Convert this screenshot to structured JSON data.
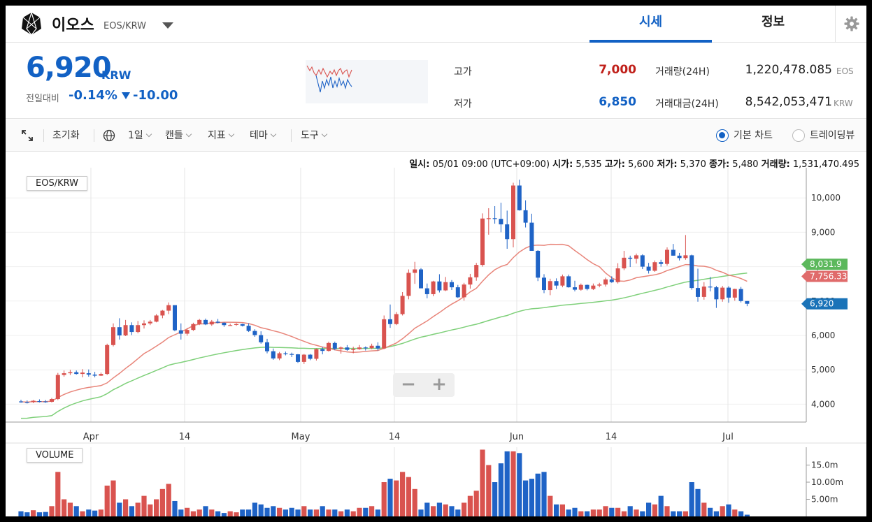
{
  "header": {
    "coin_name": "이오스",
    "coin_pair": "EOS/KRW",
    "tabs": [
      {
        "label": "시세"
      },
      {
        "label": "정보"
      }
    ]
  },
  "ticker": {
    "price": "6,920",
    "unit": "KRW",
    "change_label": "전일대비",
    "change_pct": "-0.14%",
    "change_abs": "-10.00",
    "high_label": "고가",
    "high_value": "7,000",
    "low_label": "저가",
    "low_value": "6,850",
    "volume_label": "거래량(24H)",
    "volume_value": "1,220,478.085",
    "volume_unit": "EOS",
    "amount_label": "거래대금(24H)",
    "amount_value": "8,542,053,471",
    "amount_unit": "KRW"
  },
  "toolbar": {
    "reset": "초기화",
    "interval": "1일",
    "chart_type": "캔들",
    "indicator": "지표",
    "theme": "테마",
    "tools": "도구",
    "basic_chart": "기본 차트",
    "trading_view": "트레이딩뷰"
  },
  "ohlc_readout": {
    "date_label": "일시:",
    "date_value": "05/01 09:00 (UTC+09:00)",
    "open_label": "시가:",
    "open_value": "5,535",
    "high_label": "고가:",
    "high_value": "5,600",
    "low_label": "저가:",
    "low_value": "5,370",
    "close_label": "종가:",
    "close_value": "5,480",
    "volume_label": "거래량:",
    "volume_value": "1,531,470.495"
  },
  "colors": {
    "up": "#d9534f",
    "down": "#1f63c6",
    "ma_short": "#e8857a",
    "ma_long": "#7fd07a",
    "accent": "#1261c4",
    "high_red": "#c0201a"
  },
  "chart_data": [
    {
      "type": "candlestick",
      "panel_label": "EOS/KRW",
      "ylim": [
        3700,
        10500
      ],
      "y_ticks": [
        "4,000",
        "5,000",
        "6,000",
        "7,000",
        "8,000",
        "9,000",
        "10,000"
      ],
      "x_tick_labels": [
        "Apr",
        "14",
        "May",
        "14",
        "Jun",
        "14",
        "Jul"
      ],
      "last_price_label": "6,920",
      "ma_short_label": "7,756.333",
      "ma_long_label": "8,031.9",
      "ohlc": [
        [
          4080,
          4130,
          4040,
          4070
        ],
        [
          4060,
          4110,
          4020,
          4050
        ],
        [
          4060,
          4120,
          4030,
          4100
        ],
        [
          4090,
          4140,
          4050,
          4080
        ],
        [
          4080,
          4120,
          4040,
          4070
        ],
        [
          4070,
          4180,
          4050,
          4150
        ],
        [
          4150,
          4910,
          4120,
          4850
        ],
        [
          4850,
          4980,
          4800,
          4900
        ],
        [
          4900,
          5000,
          4850,
          4930
        ],
        [
          4930,
          4980,
          4860,
          4880
        ],
        [
          4880,
          5020,
          4780,
          4920
        ],
        [
          4900,
          5010,
          4800,
          4860
        ],
        [
          4860,
          4940,
          4780,
          4830
        ],
        [
          4830,
          4920,
          4820,
          4880
        ],
        [
          4880,
          5760,
          4850,
          5720
        ],
        [
          5720,
          6350,
          5680,
          6240
        ],
        [
          6240,
          6500,
          5880,
          6000
        ],
        [
          6000,
          6450,
          5980,
          6300
        ],
        [
          6300,
          6380,
          6010,
          6100
        ],
        [
          6100,
          6420,
          6060,
          6300
        ],
        [
          6300,
          6440,
          6200,
          6350
        ],
        [
          6350,
          6450,
          6300,
          6400
        ],
        [
          6400,
          6620,
          6380,
          6580
        ],
        [
          6580,
          6740,
          6500,
          6720
        ],
        [
          6720,
          6960,
          6620,
          6880
        ],
        [
          6880,
          6860,
          6120,
          6150
        ],
        [
          6150,
          6350,
          5880,
          6050
        ],
        [
          6050,
          6210,
          5990,
          6160
        ],
        [
          6160,
          6370,
          6130,
          6330
        ],
        [
          6330,
          6480,
          6300,
          6450
        ],
        [
          6450,
          6490,
          6300,
          6320
        ],
        [
          6320,
          6450,
          6280,
          6400
        ],
        [
          6400,
          6480,
          6350,
          6370
        ],
        [
          6370,
          6380,
          6250,
          6300
        ],
        [
          6300,
          6340,
          6290,
          6300
        ],
        [
          6310,
          6360,
          6280,
          6330
        ],
        [
          6330,
          6340,
          6260,
          6280
        ],
        [
          6280,
          6350,
          6100,
          6130
        ],
        [
          6130,
          6180,
          5960,
          6010
        ],
        [
          6010,
          6120,
          5760,
          5800
        ],
        [
          5800,
          5900,
          5480,
          5540
        ],
        [
          5540,
          5620,
          5290,
          5330
        ],
        [
          5330,
          5520,
          5280,
          5480
        ],
        [
          5480,
          5530,
          5420,
          5460
        ],
        [
          5460,
          5500,
          5370,
          5450
        ],
        [
          5450,
          5460,
          5200,
          5230
        ],
        [
          5230,
          5460,
          5170,
          5440
        ],
        [
          5440,
          5460,
          5280,
          5320
        ],
        [
          5320,
          5620,
          5270,
          5600
        ],
        [
          5600,
          5660,
          5450,
          5550
        ],
        [
          5550,
          5820,
          5530,
          5780
        ],
        [
          5780,
          5820,
          5570,
          5610
        ],
        [
          5610,
          5680,
          5470,
          5650
        ],
        [
          5650,
          5720,
          5550,
          5580
        ],
        [
          5580,
          5670,
          5480,
          5600
        ],
        [
          5600,
          5720,
          5580,
          5650
        ],
        [
          5650,
          5680,
          5560,
          5630
        ],
        [
          5630,
          5760,
          5600,
          5700
        ],
        [
          5700,
          5800,
          5560,
          5620
        ],
        [
          5620,
          6580,
          5600,
          6470
        ],
        [
          6470,
          6900,
          6220,
          6330
        ],
        [
          6330,
          6680,
          6300,
          6620
        ],
        [
          6620,
          7260,
          6580,
          7150
        ],
        [
          7150,
          7920,
          7050,
          7820
        ],
        [
          7820,
          8140,
          7500,
          7920
        ],
        [
          7920,
          7960,
          7380,
          7370
        ],
        [
          7370,
          7510,
          7080,
          7200
        ],
        [
          7200,
          7590,
          7140,
          7570
        ],
        [
          7570,
          7780,
          7250,
          7310
        ],
        [
          7310,
          7700,
          7290,
          7550
        ],
        [
          7550,
          7610,
          7320,
          7400
        ],
        [
          7400,
          7470,
          7090,
          7110
        ],
        [
          7110,
          7530,
          7010,
          7480
        ],
        [
          7480,
          7790,
          7360,
          7690
        ],
        [
          7690,
          8110,
          7590,
          8050
        ],
        [
          8050,
          9550,
          8000,
          9400
        ],
        [
          9400,
          9700,
          8930,
          9410
        ],
        [
          9410,
          9760,
          9250,
          9390
        ],
        [
          9390,
          9860,
          9000,
          9230
        ],
        [
          9230,
          9630,
          8520,
          8800
        ],
        [
          8800,
          10440,
          8560,
          10360
        ],
        [
          10360,
          10530,
          9630,
          9640
        ],
        [
          9640,
          9930,
          9140,
          9280
        ],
        [
          9280,
          9540,
          8520,
          8460
        ],
        [
          8460,
          8480,
          7580,
          7680
        ],
        [
          7680,
          7780,
          7230,
          7320
        ],
        [
          7320,
          7650,
          7170,
          7580
        ],
        [
          7580,
          7660,
          7350,
          7450
        ],
        [
          7450,
          7770,
          7400,
          7720
        ],
        [
          7720,
          7770,
          7390,
          7400
        ],
        [
          7400,
          7590,
          7280,
          7330
        ],
        [
          7330,
          7510,
          7300,
          7470
        ],
        [
          7470,
          7480,
          7310,
          7350
        ],
        [
          7350,
          7510,
          7320,
          7450
        ],
        [
          7450,
          7530,
          7400,
          7480
        ],
        [
          7480,
          7680,
          7420,
          7630
        ],
        [
          7630,
          7720,
          7530,
          7550
        ],
        [
          7550,
          8100,
          7510,
          7950
        ],
        [
          7950,
          8460,
          7900,
          8260
        ],
        [
          8260,
          8320,
          7990,
          8230
        ],
        [
          8230,
          8380,
          8090,
          8330
        ],
        [
          8330,
          8360,
          7930,
          8000
        ],
        [
          8000,
          8110,
          7800,
          7880
        ],
        [
          7880,
          8180,
          7850,
          8130
        ],
        [
          8130,
          8200,
          8000,
          8080
        ],
        [
          8080,
          8560,
          8030,
          8490
        ],
        [
          8490,
          8660,
          8320,
          8320
        ],
        [
          8320,
          8400,
          8180,
          8250
        ],
        [
          8250,
          8920,
          8200,
          8330
        ],
        [
          8330,
          8350,
          7330,
          7380
        ],
        [
          7380,
          7940,
          6980,
          7120
        ],
        [
          7120,
          7550,
          7040,
          7420
        ],
        [
          7420,
          7700,
          7280,
          7400
        ],
        [
          7400,
          7440,
          6800,
          7050
        ],
        [
          7050,
          7440,
          6980,
          7390
        ],
        [
          7390,
          7430,
          6950,
          7100
        ],
        [
          7100,
          7360,
          7010,
          7350
        ],
        [
          7350,
          7410,
          6960,
          7000
        ],
        [
          7000,
          7000,
          6850,
          6920
        ]
      ]
    },
    {
      "type": "bar",
      "panel_label": "VOLUME",
      "ylim": [
        0,
        20
      ],
      "y_ticks": [
        "5.00m",
        "10.00m",
        "15.0m"
      ],
      "unit": "m",
      "values": [
        1.5,
        1.2,
        1.8,
        1.2,
        1.3,
        3.0,
        13.0,
        5.0,
        4.0,
        3.0,
        1.5,
        2.0,
        1.7,
        2.0,
        9.0,
        10.5,
        4.0,
        5.0,
        3.0,
        4.0,
        6.0,
        3.5,
        5.0,
        8.0,
        9.5,
        4.5,
        2.0,
        2.5,
        1.5,
        2.0,
        3.0,
        2.0,
        1.5,
        1.0,
        1.5,
        1.2,
        2.0,
        2.0,
        4.0,
        3.5,
        2.5,
        3.0,
        2.5,
        2.0,
        2.5,
        2.0,
        3.0,
        2.0,
        2.0,
        3.0,
        2.0,
        2.0,
        1.5,
        2.0,
        1.5,
        2.5,
        2.5,
        3.0,
        2.0,
        10.0,
        11.0,
        10.5,
        13.0,
        11.5,
        8.0,
        2.0,
        4.0,
        3.0,
        4.0,
        3.5,
        3.0,
        2.0,
        4.0,
        6.0,
        7.5,
        19.5,
        15.0,
        10.0,
        15.5,
        19.0,
        19.0,
        18.5,
        10.5,
        11.0,
        12.5,
        13.0,
        6.0,
        3.5,
        3.5,
        2.0,
        2.5,
        1.5,
        1.5,
        2.0,
        2.0,
        3.0,
        2.5,
        2.5,
        1.5,
        3.0,
        2.0,
        1.5,
        4.0,
        3.5,
        6.0,
        3.0,
        1.5,
        1.5,
        1.5,
        10.0,
        8.0,
        4.0,
        2.5,
        1.5,
        3.0,
        3.5,
        2.0,
        1.5,
        0.5
      ]
    }
  ]
}
